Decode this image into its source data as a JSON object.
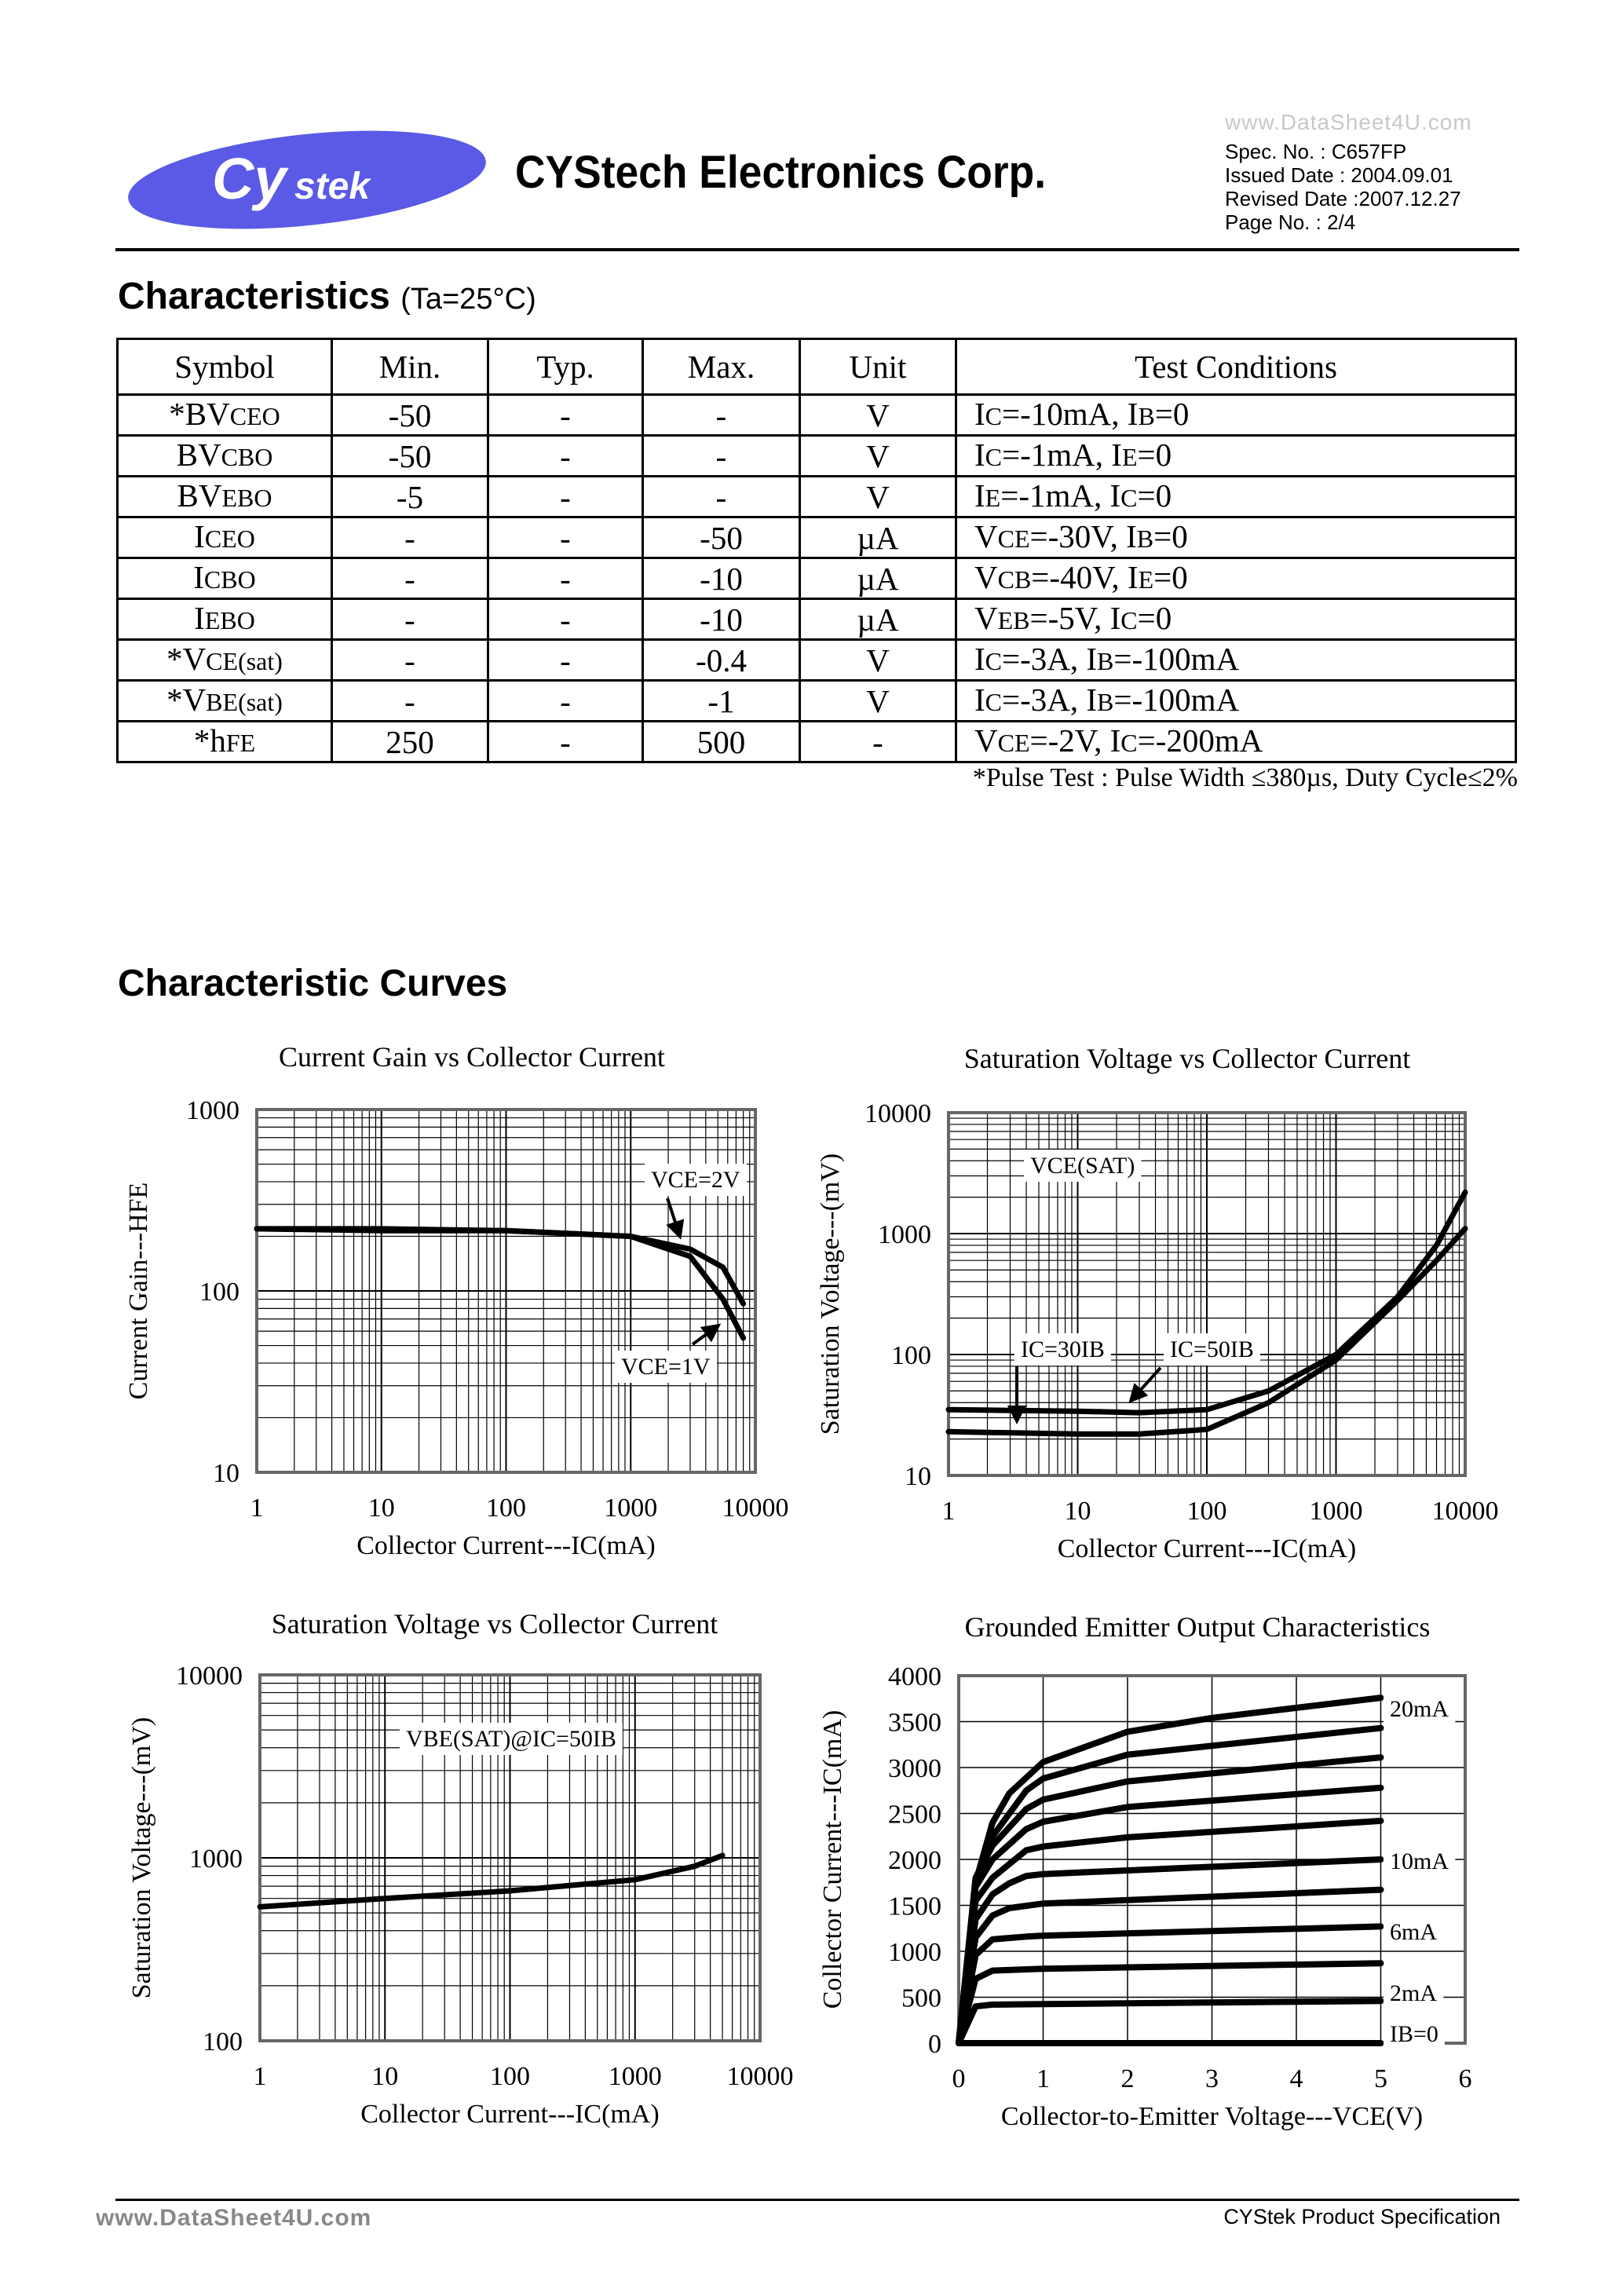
{
  "header": {
    "logo_text": "Cystek",
    "company": "CYStech Electronics Corp.",
    "spec_no": "Spec. No. : C657FP",
    "issued": "Issued Date : 2004.09.01",
    "revised": "Revised Date :2007.12.27",
    "page_no": "Page No. : 2/4",
    "watermark": "www.DataSheet4U.com",
    "logo_color": "#5a5ae6"
  },
  "characteristics": {
    "title": "Characteristics",
    "condition": "(Ta=25°C)",
    "columns": [
      "Symbol",
      "Min.",
      "Typ.",
      "Max.",
      "Unit",
      "Test Conditions"
    ],
    "rows": [
      {
        "symbol": "*BV_{CEO}",
        "min": "-50",
        "typ": "-",
        "max": "-",
        "unit": "V",
        "cond": "I_{C}=-10mA, I_{B}=0"
      },
      {
        "symbol": "BV_{CBO}",
        "min": "-50",
        "typ": "-",
        "max": "-",
        "unit": "V",
        "cond": "I_{C}=-1mA, I_{E}=0"
      },
      {
        "symbol": "BV_{EBO}",
        "min": "-5",
        "typ": "-",
        "max": "-",
        "unit": "V",
        "cond": "I_{E}=-1mA, I_{C}=0"
      },
      {
        "symbol": "I_{CEO}",
        "min": "-",
        "typ": "-",
        "max": "-50",
        "unit": "µA",
        "cond": "V_{CE}=-30V, I_{B}=0"
      },
      {
        "symbol": "I_{CBO}",
        "min": "-",
        "typ": "-",
        "max": "-10",
        "unit": "µA",
        "cond": "V_{CB}=-40V, I_{E}=0"
      },
      {
        "symbol": "I_{EBO}",
        "min": "-",
        "typ": "-",
        "max": "-10",
        "unit": "µA",
        "cond": "V_{EB}=-5V, I_{C}=0"
      },
      {
        "symbol": "*V_{CE(sat)}",
        "min": "-",
        "typ": "-",
        "max": "-0.4",
        "unit": "V",
        "cond": "I_{C}=-3A, I_{B}=-100mA"
      },
      {
        "symbol": "*V_{BE(sat)}",
        "min": "-",
        "typ": "-",
        "max": "-1",
        "unit": "V",
        "cond": "I_{C}=-3A, I_{B}=-100mA"
      },
      {
        "symbol": "*h_{FE}",
        "min": "250",
        "typ": "-",
        "max": "500",
        "unit": "-",
        "cond": "V_{CE}=-2V, I_{C}=-200mA"
      }
    ],
    "pulse_note": "*Pulse Test : Pulse Width ≤380µs, Duty Cycle≤2%"
  },
  "curves_title": "Characteristic Curves",
  "chart_data": [
    {
      "type": "line",
      "title": "Current Gain vs Collector Current",
      "xlabel": "Collector Current---IC(mA)",
      "ylabel": "Current Gain---HFE",
      "xscale": "log",
      "yscale": "log",
      "xlim": [
        1,
        10000
      ],
      "ylim": [
        10,
        1000
      ],
      "xticks": [
        "1",
        "10",
        "100",
        "1000",
        "10000"
      ],
      "yticks": [
        "10",
        "100",
        "1000"
      ],
      "grid": true,
      "annotations": [
        "VCE=2V",
        "VCE=1V"
      ],
      "series": [
        {
          "name": "VCE=2V",
          "x": [
            1,
            10,
            100,
            1000,
            3000,
            5500,
            8000
          ],
          "y": [
            220,
            220,
            215,
            200,
            170,
            135,
            85
          ]
        },
        {
          "name": "VCE=1V",
          "x": [
            1,
            10,
            100,
            1000,
            3000,
            5500,
            8000
          ],
          "y": [
            220,
            215,
            215,
            200,
            155,
            90,
            55
          ]
        }
      ]
    },
    {
      "type": "line",
      "title": "Saturation Voltage vs Collector Current",
      "xlabel": "Collector Current---IC(mA)",
      "ylabel": "Saturation Voltage---(mV)",
      "xscale": "log",
      "yscale": "log",
      "xlim": [
        1,
        10000
      ],
      "ylim": [
        10,
        10000
      ],
      "xticks": [
        "1",
        "10",
        "100",
        "1000",
        "10000"
      ],
      "yticks": [
        "10",
        "100",
        "1000",
        "10000"
      ],
      "grid": true,
      "annotations": [
        "VCE(SAT)",
        "IC=30IB",
        "IC=50IB"
      ],
      "series": [
        {
          "name": "IC=50IB",
          "x": [
            1,
            10,
            30,
            100,
            300,
            1000,
            3000,
            6000,
            10000
          ],
          "y": [
            35,
            34,
            33,
            35,
            50,
            100,
            300,
            800,
            2200
          ]
        },
        {
          "name": "IC=30IB",
          "x": [
            1,
            10,
            30,
            100,
            300,
            1000,
            3000,
            6000,
            10000
          ],
          "y": [
            23,
            22,
            22,
            24,
            40,
            90,
            280,
            600,
            1100
          ]
        }
      ]
    },
    {
      "type": "line",
      "title": "Saturation Voltage vs Collector Current",
      "xlabel": "Collector Current---IC(mA)",
      "ylabel": "Saturation Voltage---(mV)",
      "xscale": "log",
      "yscale": "log",
      "xlim": [
        1,
        10000
      ],
      "ylim": [
        100,
        10000
      ],
      "xticks": [
        "1",
        "10",
        "100",
        "1000",
        "10000"
      ],
      "yticks": [
        "100",
        "1000",
        "10000"
      ],
      "grid": true,
      "annotations": [
        "VBE(SAT)@IC=50IB"
      ],
      "series": [
        {
          "name": "VBE(SAT)@IC=50IB",
          "x": [
            1,
            10,
            100,
            1000,
            3000,
            5000
          ],
          "y": [
            540,
            600,
            660,
            760,
            900,
            1030
          ]
        }
      ]
    },
    {
      "type": "line",
      "title": "Grounded Emitter Output Characteristics",
      "xlabel": "Collector-to-Emitter Voltage---VCE(V)",
      "ylabel": "Collector Current---IC(mA)",
      "xscale": "linear",
      "yscale": "linear",
      "xlim": [
        0,
        6
      ],
      "ylim": [
        0,
        4000
      ],
      "xticks": [
        "0",
        "1",
        "2",
        "3",
        "4",
        "5",
        "6"
      ],
      "yticks": [
        "0",
        "500",
        "1000",
        "1500",
        "2000",
        "2500",
        "3000",
        "3500",
        "4000"
      ],
      "grid": true,
      "annotations": [
        "20mA",
        "10mA",
        "6mA",
        "2mA",
        "IB=0"
      ],
      "series": [
        {
          "name": "IB=0",
          "x": [
            0,
            5
          ],
          "y": [
            0,
            0
          ]
        },
        {
          "name": "2mA",
          "x": [
            0,
            0.2,
            0.4,
            1,
            5
          ],
          "y": [
            0,
            400,
            420,
            425,
            460
          ]
        },
        {
          "x": [
            0,
            0.2,
            0.4,
            1,
            5
          ],
          "y": [
            0,
            700,
            790,
            810,
            870
          ]
        },
        {
          "name": "6mA",
          "x": [
            0,
            0.2,
            0.4,
            0.8,
            1,
            5
          ],
          "y": [
            0,
            960,
            1130,
            1160,
            1170,
            1270
          ]
        },
        {
          "x": [
            0,
            0.2,
            0.4,
            0.6,
            1,
            5
          ],
          "y": [
            0,
            1150,
            1390,
            1470,
            1520,
            1670
          ]
        },
        {
          "name": "10mA",
          "x": [
            0,
            0.2,
            0.4,
            0.6,
            0.8,
            1,
            5
          ],
          "y": [
            0,
            1350,
            1620,
            1740,
            1820,
            1840,
            2000
          ]
        },
        {
          "x": [
            0,
            0.2,
            0.4,
            0.8,
            1,
            2,
            5
          ],
          "y": [
            0,
            1550,
            1800,
            2100,
            2140,
            2240,
            2420
          ]
        },
        {
          "x": [
            0,
            0.2,
            0.4,
            0.8,
            1,
            2,
            5
          ],
          "y": [
            0,
            1700,
            2000,
            2330,
            2410,
            2570,
            2780
          ]
        },
        {
          "x": [
            0,
            0.2,
            0.4,
            0.8,
            1,
            2,
            5
          ],
          "y": [
            0,
            1800,
            2150,
            2550,
            2650,
            2850,
            3110
          ]
        },
        {
          "x": [
            0,
            0.2,
            0.4,
            0.8,
            1,
            2,
            5
          ],
          "y": [
            0,
            1780,
            2250,
            2750,
            2880,
            3140,
            3430
          ]
        },
        {
          "name": "20mA",
          "x": [
            0,
            0.2,
            0.4,
            0.6,
            1,
            2,
            3,
            5
          ],
          "y": [
            0,
            1750,
            2400,
            2720,
            3060,
            3390,
            3540,
            3760
          ]
        }
      ]
    }
  ],
  "footer": {
    "watermark": "www.DataSheet4U.com",
    "text": "CYStek Product Specification"
  }
}
